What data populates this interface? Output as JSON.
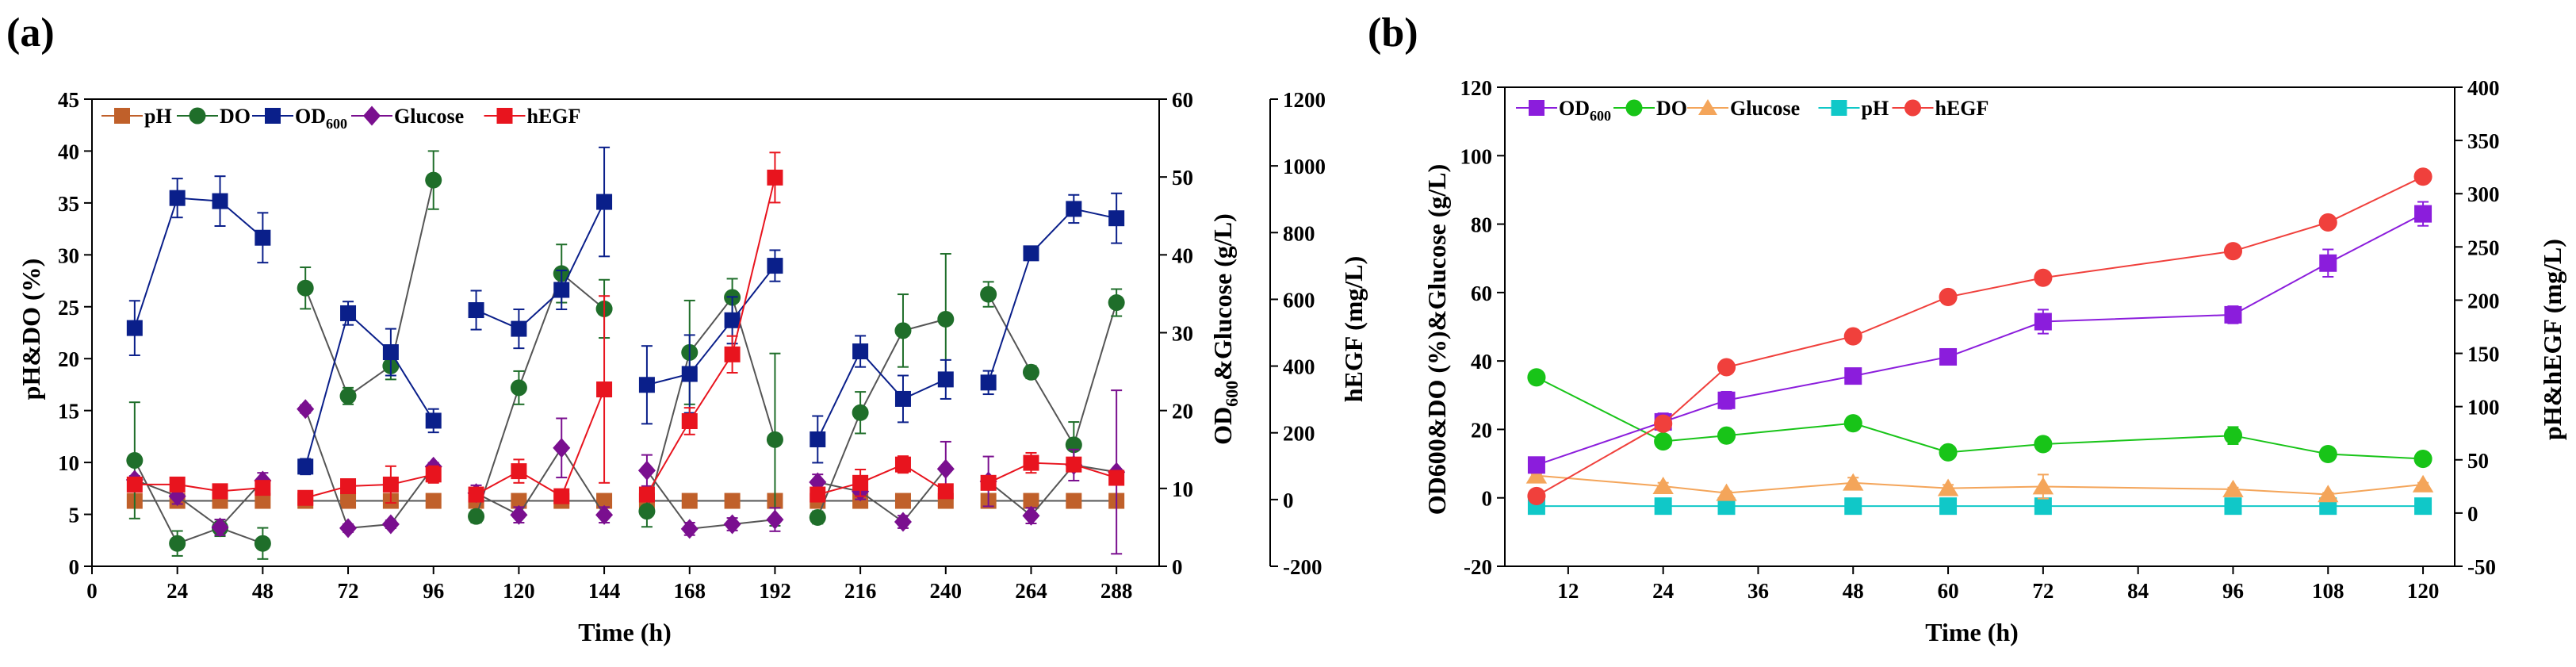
{
  "chart_data": [
    {
      "panel": "(a)",
      "type": "line",
      "xlabel": "Time (h)",
      "xlim": [
        0,
        300
      ],
      "xticks": [
        0,
        24,
        48,
        72,
        96,
        120,
        144,
        168,
        192,
        216,
        240,
        264,
        288
      ],
      "y1label": "pH&DO (%)",
      "y1lim": [
        0,
        45
      ],
      "y1ticks": [
        0,
        5,
        10,
        15,
        20,
        25,
        30,
        35,
        40,
        45
      ],
      "y2label_parts": [
        "OD",
        "600",
        "&Glucose (g/L)"
      ],
      "y2lim": [
        0,
        60
      ],
      "y2ticks": [
        0,
        10,
        20,
        30,
        40,
        50,
        60
      ],
      "y3label": "hEGF (mg/L)",
      "y3lim": [
        -200,
        1200
      ],
      "y3ticks": [
        -200,
        0,
        200,
        400,
        600,
        800,
        1000,
        1200
      ],
      "legend": [
        {
          "key": "pH",
          "label": "pH",
          "sub": "",
          "color": "#c0602a",
          "marker": "square"
        },
        {
          "key": "DO",
          "label": "DO",
          "sub": "",
          "color": "#1f6e2a",
          "marker": "circle"
        },
        {
          "key": "OD",
          "label": "OD",
          "sub": "600",
          "color": "#0a1f8a",
          "marker": "square"
        },
        {
          "key": "Glucose",
          "label": "Glucose",
          "sub": "",
          "color": "#7a0f8f",
          "marker": "diamond"
        },
        {
          "key": "hEGF",
          "label": "hEGF",
          "sub": "",
          "color": "#e8141e",
          "marker": "square"
        }
      ],
      "series": [
        {
          "key": "pH",
          "axis": "y1",
          "segments": [
            {
              "x": [
                12,
                24,
                36,
                48
              ],
              "y": [
                6.3,
                6.3,
                6.3,
                6.3
              ],
              "err": [
                0.2,
                0.2,
                0.2,
                0.2
              ]
            },
            {
              "x": [
                60,
                72,
                84,
                96
              ],
              "y": [
                6.3,
                6.3,
                6.3,
                6.3
              ],
              "err": [
                0.2,
                0.2,
                0.2,
                0.2
              ]
            },
            {
              "x": [
                108,
                120,
                132,
                144
              ],
              "y": [
                6.3,
                6.3,
                6.3,
                6.3
              ],
              "err": [
                0.2,
                0.2,
                0.2,
                0.2
              ]
            },
            {
              "x": [
                156,
                168,
                180,
                192
              ],
              "y": [
                6.3,
                6.3,
                6.3,
                6.3
              ],
              "err": [
                0.2,
                0.2,
                0.2,
                0.2
              ]
            },
            {
              "x": [
                204,
                216,
                228,
                240
              ],
              "y": [
                6.3,
                6.3,
                6.3,
                6.3
              ],
              "err": [
                0.2,
                0.2,
                0.2,
                0.2
              ]
            },
            {
              "x": [
                252,
                264,
                276,
                288
              ],
              "y": [
                6.3,
                6.3,
                6.3,
                6.3
              ],
              "err": [
                0.2,
                0.2,
                0.2,
                0.2
              ]
            }
          ]
        },
        {
          "key": "DO",
          "axis": "y1",
          "segments": [
            {
              "x": [
                12,
                24,
                36,
                48
              ],
              "y": [
                10.2,
                2.2,
                3.7,
                2.2
              ],
              "err": [
                5.6,
                1.2,
                0.8,
                1.5
              ]
            },
            {
              "x": [
                60,
                72,
                84,
                96
              ],
              "y": [
                26.8,
                16.4,
                19.3,
                37.2
              ],
              "err": [
                2.0,
                0.8,
                1.3,
                2.8
              ]
            },
            {
              "x": [
                108,
                120,
                132,
                144
              ],
              "y": [
                4.8,
                17.2,
                28.2,
                24.8
              ],
              "err": [
                0.6,
                1.6,
                2.8,
                2.8
              ]
            },
            {
              "x": [
                156,
                168,
                180,
                192
              ],
              "y": [
                5.3,
                20.6,
                25.9,
                12.2
              ],
              "err": [
                1.5,
                5.0,
                1.8,
                8.3
              ]
            },
            {
              "x": [
                204,
                216,
                228,
                240
              ],
              "y": [
                4.7,
                14.8,
                22.7,
                23.8
              ],
              "err": [
                0.6,
                2.0,
                3.5,
                6.3
              ]
            },
            {
              "x": [
                252,
                264,
                276,
                288
              ],
              "y": [
                26.2,
                18.7,
                11.7,
                25.4
              ],
              "err": [
                1.2,
                0.6,
                2.2,
                1.3
              ]
            }
          ]
        },
        {
          "key": "OD",
          "axis": "y2",
          "segments": [
            {
              "x": [
                12,
                24,
                36,
                48
              ],
              "y": [
                30.6,
                47.3,
                46.9,
                42.2
              ],
              "err": [
                3.5,
                2.5,
                3.2,
                3.2
              ]
            },
            {
              "x": [
                60,
                72,
                84,
                96
              ],
              "y": [
                12.8,
                32.5,
                27.5,
                18.7
              ],
              "err": [
                1.0,
                1.5,
                3.0,
                1.5
              ]
            },
            {
              "x": [
                108,
                120,
                132,
                144
              ],
              "y": [
                32.9,
                30.5,
                35.5,
                46.8
              ],
              "err": [
                2.5,
                2.5,
                2.5,
                7.0
              ]
            },
            {
              "x": [
                156,
                168,
                180,
                192
              ],
              "y": [
                23.3,
                24.7,
                31.6,
                38.6
              ],
              "err": [
                5.0,
                5.0,
                3.0,
                2.0
              ]
            },
            {
              "x": [
                204,
                216,
                228,
                240
              ],
              "y": [
                16.3,
                27.6,
                21.5,
                24.0
              ],
              "err": [
                3.0,
                2.0,
                3.0,
                2.5
              ]
            },
            {
              "x": [
                252,
                264,
                276,
                288
              ],
              "y": [
                23.6,
                40.2,
                45.9,
                44.7
              ],
              "err": [
                1.5,
                0.8,
                1.8,
                3.2
              ]
            }
          ]
        },
        {
          "key": "Glucose",
          "axis": "y2",
          "segments": [
            {
              "x": [
                12,
                24,
                36,
                48
              ],
              "y": [
                11.1,
                9.0,
                5.0,
                11.0
              ],
              "err": [
                0.5,
                1.0,
                1.0,
                1.0
              ]
            },
            {
              "x": [
                60,
                72,
                84,
                96
              ],
              "y": [
                20.2,
                4.9,
                5.4,
                12.8
              ],
              "err": [
                0.5,
                0.5,
                0.5,
                0.5
              ]
            },
            {
              "x": [
                108,
                120,
                132,
                144
              ],
              "y": [
                9.4,
                6.6,
                15.2,
                6.6
              ],
              "err": [
                1.0,
                1.0,
                3.8,
                1.0
              ]
            },
            {
              "x": [
                156,
                168,
                180,
                192
              ],
              "y": [
                12.3,
                4.8,
                5.4,
                6.0
              ],
              "err": [
                2.0,
                0.8,
                0.8,
                1.5
              ]
            },
            {
              "x": [
                204,
                216,
                228,
                240
              ],
              "y": [
                10.8,
                9.6,
                5.7,
                12.5
              ],
              "err": [
                1.0,
                1.0,
                0.8,
                3.5
              ]
            },
            {
              "x": [
                252,
                264,
                276,
                288
              ],
              "y": [
                10.9,
                6.5,
                13.0,
                12.1
              ],
              "err": [
                3.2,
                1.0,
                2.0,
                10.5
              ]
            }
          ]
        },
        {
          "key": "hEGF",
          "axis": "y3",
          "segments": [
            {
              "x": [
                12,
                24,
                36,
                48
              ],
              "y": [
                45,
                45,
                25,
                35
              ],
              "err": [
                15,
                15,
                15,
                15
              ]
            },
            {
              "x": [
                60,
                72,
                84,
                96
              ],
              "y": [
                5,
                40,
                45,
                75
              ],
              "err": [
                20,
                20,
                55,
                25
              ]
            },
            {
              "x": [
                108,
                120,
                132,
                144
              ],
              "y": [
                15,
                85,
                10,
                330
              ],
              "err": [
                20,
                35,
                20,
                280
              ]
            },
            {
              "x": [
                156,
                168,
                180,
                192
              ],
              "y": [
                15,
                235,
                435,
                965
              ],
              "err": [
                20,
                40,
                55,
                75
              ]
            },
            {
              "x": [
                204,
                216,
                228,
                240
              ],
              "y": [
                15,
                50,
                105,
                25
              ],
              "err": [
                20,
                40,
                25,
                20
              ]
            },
            {
              "x": [
                252,
                264,
                276,
                288
              ],
              "y": [
                50,
                110,
                105,
                65
              ],
              "err": [
                20,
                30,
                20,
                20
              ]
            }
          ]
        }
      ]
    },
    {
      "panel": "(b)",
      "type": "line",
      "xlabel": "Time (h)",
      "xlim": [
        4,
        124
      ],
      "xticks": [
        12,
        24,
        36,
        48,
        60,
        72,
        84,
        96,
        108,
        120
      ],
      "y1label": "OD600&DO (%)&Glucose (g/L)",
      "y1lim": [
        -20,
        120
      ],
      "y1ticks": [
        -20,
        0,
        20,
        40,
        60,
        80,
        100,
        120
      ],
      "y2label": "pH&hEGF (mg/L)",
      "y2lim": [
        -50,
        400
      ],
      "y2ticks": [
        -50,
        0,
        50,
        100,
        150,
        200,
        250,
        300,
        350,
        400
      ],
      "legend": [
        {
          "key": "OD",
          "label": "OD",
          "sub": "600",
          "color": "#8b1ddc",
          "marker": "square"
        },
        {
          "key": "DO",
          "label": "DO",
          "sub": "",
          "color": "#18c418",
          "marker": "circle"
        },
        {
          "key": "Glucose",
          "label": "Glucose",
          "sub": "",
          "color": "#f4a55a",
          "marker": "triangle"
        },
        {
          "key": "pH",
          "label": "pH",
          "sub": "",
          "color": "#10c8c8",
          "marker": "square"
        },
        {
          "key": "hEGF",
          "label": "hEGF",
          "sub": "",
          "color": "#f0403c",
          "marker": "circle"
        }
      ],
      "series": [
        {
          "key": "OD",
          "axis": "y1",
          "x": [
            8,
            24,
            32,
            48,
            60,
            72,
            96,
            108,
            120
          ],
          "y": [
            9.6,
            22.2,
            28.5,
            35.6,
            41.2,
            51.5,
            53.5,
            68.6,
            83.0
          ],
          "err": [
            0.5,
            2.5,
            2.5,
            1.0,
            1.0,
            3.5,
            2.5,
            4.0,
            3.5
          ]
        },
        {
          "key": "DO",
          "axis": "y1",
          "x": [
            8,
            24,
            32,
            48,
            60,
            72,
            96,
            108,
            120
          ],
          "y": [
            35.2,
            16.5,
            18.2,
            21.8,
            13.3,
            15.7,
            18.2,
            12.8,
            11.4
          ],
          "err": [
            1.0,
            1.0,
            1.0,
            1.5,
            1.0,
            1.0,
            2.5,
            1.0,
            1.0
          ]
        },
        {
          "key": "Glucose",
          "axis": "y1",
          "x": [
            8,
            24,
            32,
            48,
            60,
            72,
            96,
            108,
            120
          ],
          "y": [
            6.5,
            3.4,
            1.4,
            4.4,
            2.8,
            3.3,
            2.5,
            1.0,
            3.9
          ],
          "err": [
            0.5,
            1.0,
            0.5,
            1.5,
            1.0,
            3.5,
            0.5,
            0.5,
            0.5
          ]
        },
        {
          "key": "pH",
          "axis": "y2",
          "x": [
            8,
            24,
            32,
            48,
            60,
            72,
            96,
            108,
            120
          ],
          "y": [
            6.5,
            6.5,
            6.5,
            6.5,
            6.5,
            6.5,
            6.5,
            6.5,
            6.5
          ],
          "err": [
            0.5,
            0.5,
            0.5,
            0.5,
            0.5,
            0.5,
            0.5,
            0.5,
            0.5
          ]
        },
        {
          "key": "hEGF",
          "axis": "y2",
          "x": [
            8,
            24,
            32,
            48,
            60,
            72,
            96,
            108,
            120
          ],
          "y": [
            16,
            84,
            137,
            166,
            203,
            221,
            246,
            273,
            316
          ],
          "err": [
            1,
            4,
            6,
            3,
            3,
            3,
            3,
            3,
            3
          ]
        }
      ]
    }
  ]
}
